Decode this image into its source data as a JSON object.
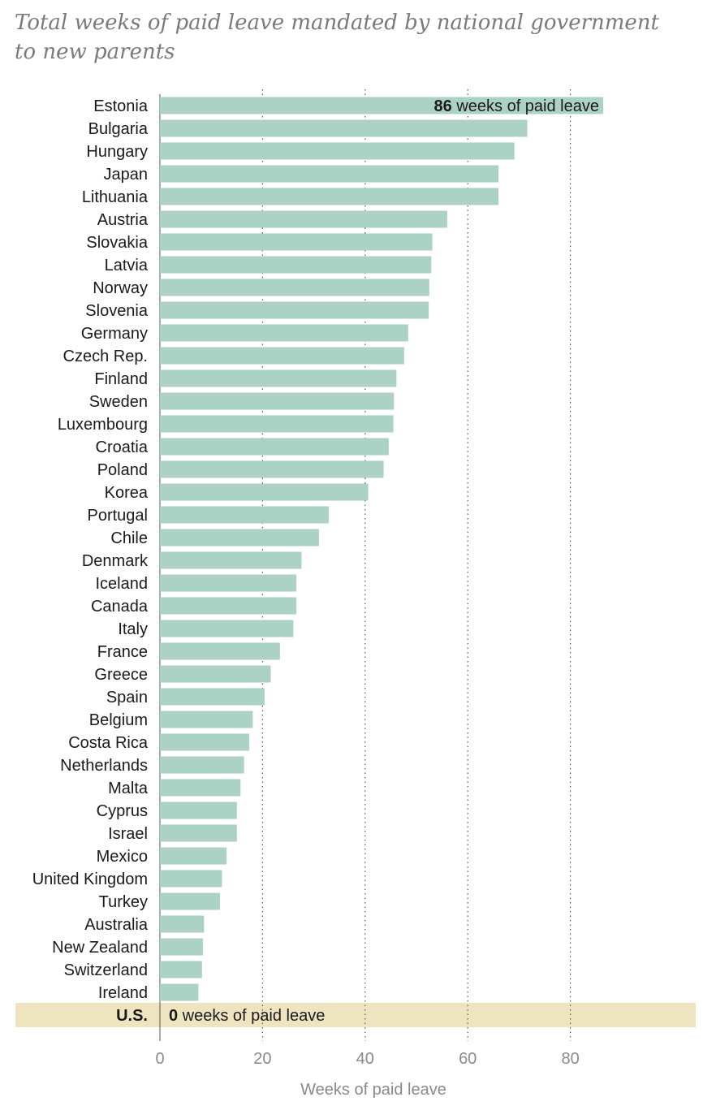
{
  "chart_data": {
    "type": "bar",
    "orientation": "horizontal",
    "title": "Total weeks of paid leave mandated by national government to new parents",
    "xlabel": "Weeks of paid leave",
    "ylabel": "",
    "xlim": [
      0,
      104
    ],
    "xticks": [
      "0",
      "20",
      "40",
      "60",
      "80"
    ],
    "grid": "vertical dotted at 20, 40, 60, 80",
    "categories": [
      "Estonia",
      "Bulgaria",
      "Hungary",
      "Japan",
      "Lithuania",
      "Austria",
      "Slovakia",
      "Latvia",
      "Norway",
      "Slovenia",
      "Germany",
      "Czech Rep.",
      "Finland",
      "Sweden",
      "Luxembourg",
      "Croatia",
      "Poland",
      "Korea",
      "Portugal",
      "Chile",
      "Denmark",
      "Iceland",
      "Canada",
      "Italy",
      "France",
      "Greece",
      "Spain",
      "Belgium",
      "Costa Rica",
      "Netherlands",
      "Malta",
      "Cyprus",
      "Israel",
      "Mexico",
      "United Kingdom",
      "Turkey",
      "Australia",
      "New Zealand",
      "Switzerland",
      "Ireland",
      "U.S."
    ],
    "values": [
      86.4,
      71.6,
      69.1,
      66.0,
      66.0,
      56.0,
      53.1,
      52.9,
      52.5,
      52.4,
      48.4,
      47.6,
      46.1,
      45.6,
      45.5,
      44.6,
      43.6,
      40.6,
      32.9,
      31.0,
      27.6,
      26.6,
      26.6,
      26.0,
      23.4,
      21.6,
      20.4,
      18.1,
      17.4,
      16.4,
      15.7,
      15.0,
      15.0,
      13.0,
      12.1,
      11.7,
      8.6,
      8.4,
      8.2,
      7.5,
      0
    ],
    "highlight": "U.S.",
    "highlight_color": "#efe4c0",
    "bar_color": "#acd2c6",
    "annotations": {
      "top": {
        "value": "86",
        "text": " weeks of paid leave"
      },
      "us": {
        "value": "0",
        "text": " weeks of paid leave"
      }
    }
  }
}
